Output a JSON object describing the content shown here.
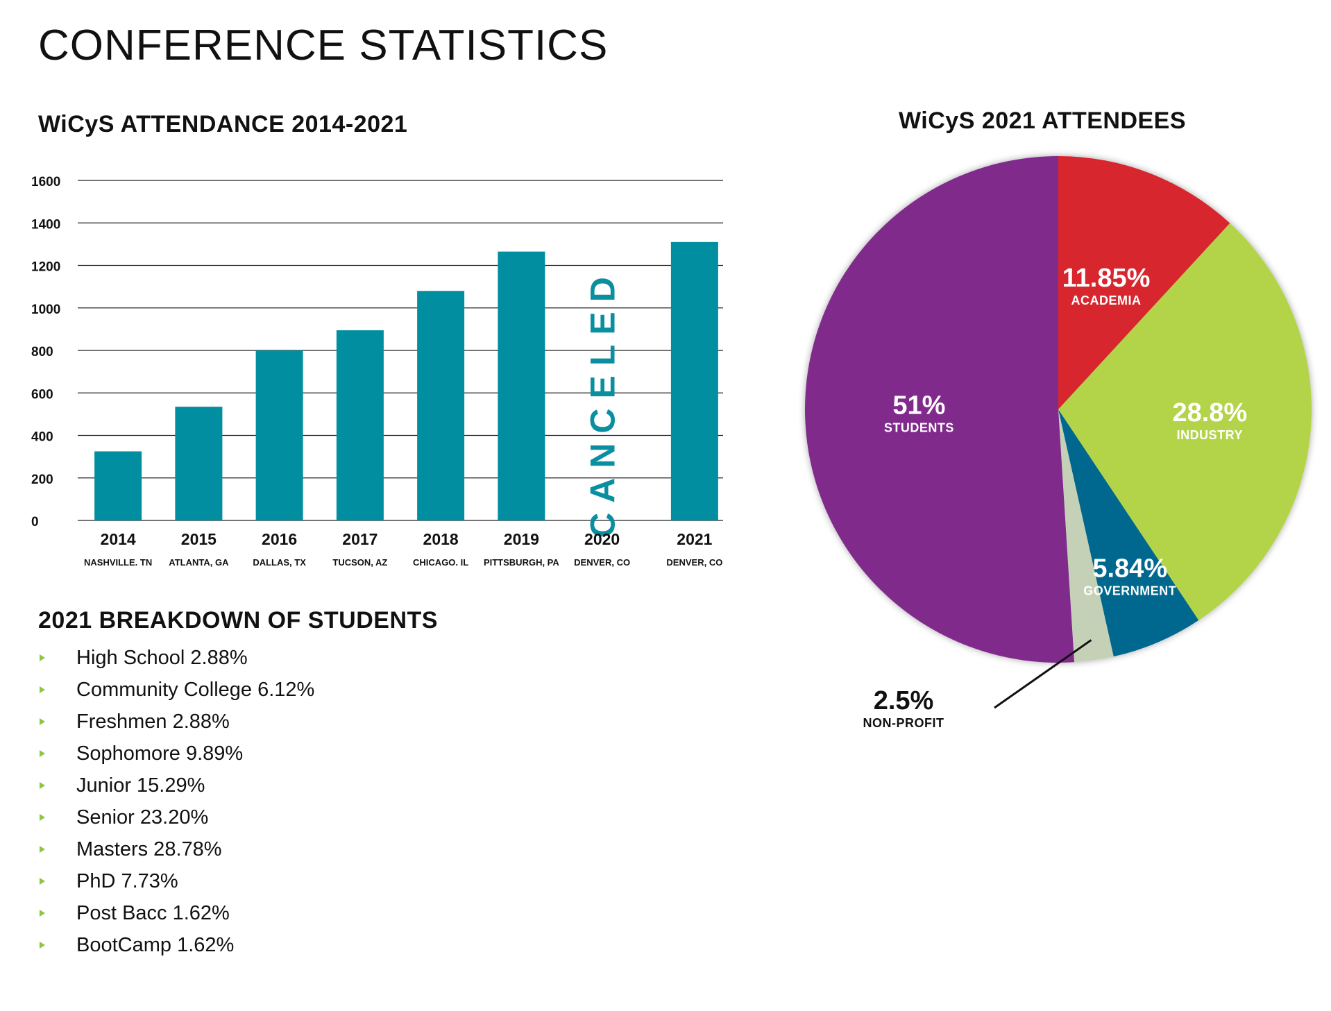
{
  "page": {
    "title": "CONFERENCE STATISTICS"
  },
  "bar_section": {
    "title": "WiCyS ATTENDANCE 2014-2021",
    "canceled_label": "CANCELED"
  },
  "pie_section": {
    "title": "WiCyS 2021 ATTENDEES"
  },
  "students_section": {
    "title": "2021 BREAKDOWN OF STUDENTS",
    "items": [
      "High School 2.88%",
      "Community College 6.12%",
      "Freshmen 2.88%",
      "Sophomore 9.89%",
      "Junior 15.29%",
      "Senior 23.20%",
      "Masters 28.78%",
      "PhD 7.73%",
      "Post Bacc 1.62%",
      "BootCamp 1.62%"
    ],
    "bullet_color": "#8dc63f"
  },
  "chart_data": [
    {
      "type": "bar",
      "title": "WiCyS ATTENDANCE 2014-2021",
      "categories": [
        "2014",
        "2015",
        "2016",
        "2017",
        "2018",
        "2019",
        "2020",
        "2021"
      ],
      "sublabels": [
        "NASHVILLE. TN",
        "ATLANTA, GA",
        "DALLAS, TX",
        "TUCSON, AZ",
        "CHICAGO. IL",
        "PITTSBURGH, PA",
        "DENVER, CO",
        "DENVER, CO"
      ],
      "values": [
        325,
        535,
        800,
        895,
        1080,
        1265,
        null,
        1310
      ],
      "yticks": [
        "0",
        "200",
        "400",
        "600",
        "800",
        "1000",
        "1200",
        "1400",
        "1600"
      ],
      "ylim": [
        0,
        1600
      ],
      "grid": true,
      "color": "#008ea0"
    },
    {
      "type": "pie",
      "title": "WiCyS 2021 ATTENDEES",
      "slices": [
        {
          "label": "ACADEMIA",
          "pct_label": "11.85%",
          "value": 11.85,
          "color": "#d7262d"
        },
        {
          "label": "INDUSTRY",
          "pct_label": "28.8%",
          "value": 28.8,
          "color": "#b3d44a"
        },
        {
          "label": "GOVERNMENT",
          "pct_label": "5.84%",
          "value": 5.84,
          "color": "#05678f"
        },
        {
          "label": "NON-PROFIT",
          "pct_label": "2.5%",
          "value": 2.5,
          "color": "#c5d1b6"
        },
        {
          "label": "STUDENTS",
          "pct_label": "51%",
          "value": 51,
          "color": "#80298c"
        }
      ]
    }
  ]
}
